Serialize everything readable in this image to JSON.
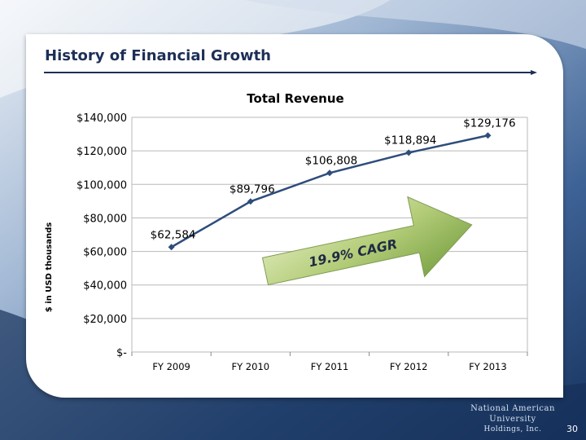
{
  "slide": {
    "title": "History of Financial Growth",
    "page_number": "30",
    "logo_line1": "National American University",
    "logo_line2": "Holdings, Inc.",
    "callout": "19.9% CAGR"
  },
  "colors": {
    "background": "#1c3a66",
    "title": "#1d2f57",
    "line": "#2e4d7b",
    "arrow_light": "#d7e4a8",
    "arrow_dark": "#6f9a3a"
  },
  "chart_data": {
    "type": "line",
    "title": "Total Revenue",
    "xlabel": "",
    "ylabel": "$ in USD thousands",
    "categories": [
      "FY 2009",
      "FY 2010",
      "FY 2011",
      "FY 2012",
      "FY 2013"
    ],
    "values": [
      62584,
      89796,
      106808,
      118894,
      129176
    ],
    "data_labels": [
      "$62,584",
      "$89,796",
      "$106,808",
      "$118,894",
      "$129,176"
    ],
    "ylim": [
      0,
      140000
    ],
    "y_ticks": [
      0,
      20000,
      40000,
      60000,
      80000,
      100000,
      120000,
      140000
    ],
    "y_tick_labels": [
      "$-",
      "$20,000",
      "$40,000",
      "$60,000",
      "$80,000",
      "$100,000",
      "$120,000",
      "$140,000"
    ],
    "grid": true,
    "legend": "none"
  }
}
